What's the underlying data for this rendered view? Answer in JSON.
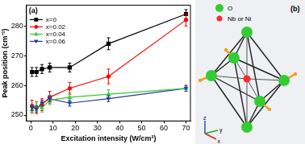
{
  "chart_data": {
    "type": "line",
    "annotation": "(a)",
    "x_label": "Excitation intensity (W/cm²)",
    "y_label": "Peak position (cm⁻¹)",
    "x": [
      0.5,
      2.5,
      5,
      8.5,
      17.5,
      35,
      70
    ],
    "series": [
      {
        "name": "x=0",
        "color": "#000000",
        "marker": "square",
        "values": [
          264.5,
          264.5,
          265.5,
          266,
          266,
          274,
          284
        ],
        "errors": [
          1.5,
          1.5,
          1.5,
          1.5,
          1.5,
          2,
          1.5
        ]
      },
      {
        "name": "x=0.02",
        "color": "#ff0000",
        "marker": "circle",
        "values": [
          253,
          252.5,
          253.5,
          256,
          259,
          263,
          282
        ],
        "errors": [
          2,
          2,
          2,
          2,
          2,
          2.5,
          2
        ]
      },
      {
        "name": "x=0.04",
        "color": "#33cc33",
        "marker": "triangle",
        "values": [
          252,
          253,
          252.5,
          255,
          256,
          257,
          259
        ],
        "errors": [
          1.5,
          1.5,
          1.5,
          1.5,
          1.5,
          1.5,
          1
        ]
      },
      {
        "name": "x=0.06",
        "color": "#2b3a99",
        "marker": "triangle_down",
        "values": [
          252.5,
          252,
          254,
          255.5,
          254,
          255.5,
          259
        ],
        "errors": [
          1,
          1,
          1,
          1,
          1,
          1,
          1
        ]
      }
    ],
    "xlim": [
      -2,
      72
    ],
    "xticks": [
      0,
      10,
      20,
      30,
      40,
      50,
      60,
      70
    ],
    "ylim": [
      248,
      287
    ],
    "yticks": [
      250,
      260,
      270,
      280
    ],
    "grid": false,
    "legend": "upper left"
  },
  "panel_b": {
    "label": "(b)",
    "legend": [
      {
        "text": "O",
        "color": "#33cc33"
      },
      {
        "text": "Nb or Ni",
        "color": "#ff2a2a"
      }
    ],
    "axes": [
      "z",
      "x",
      "y"
    ]
  }
}
